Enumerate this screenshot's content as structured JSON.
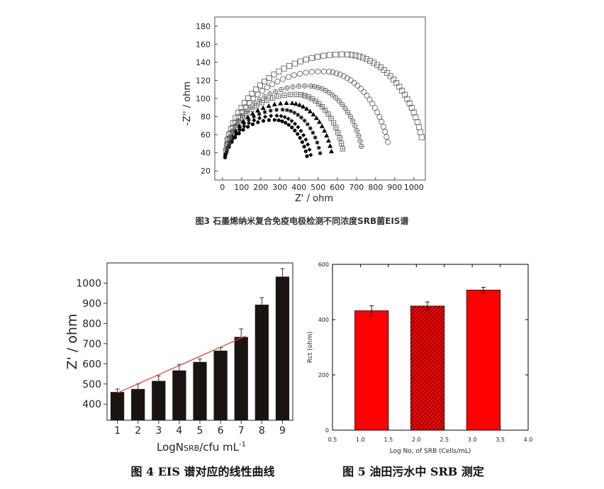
{
  "chart_data": [
    {
      "id": "fig3",
      "type": "scatter",
      "title": "",
      "caption": "图3 石墨烯纳米复合免疫电极检测不同浓度SRB菌EIS谱",
      "xlabel": "Z' / ohm",
      "ylabel": "-Z'' / ohm",
      "xlim": [
        -40,
        1060
      ],
      "ylim": [
        10,
        190
      ],
      "xticks": [
        0,
        100,
        200,
        300,
        400,
        500,
        600,
        700,
        800,
        900,
        1000
      ],
      "yticks": [
        20,
        40,
        60,
        80,
        100,
        120,
        140,
        160,
        180
      ],
      "series": [
        {
          "name": "s1",
          "marker": "filled-circle",
          "xstart": 5,
          "xend": 450,
          "peak": 80
        },
        {
          "name": "s2",
          "marker": "filled-diamond",
          "xstart": 5,
          "xend": 470,
          "peak": 85
        },
        {
          "name": "s3",
          "marker": "star",
          "xstart": 5,
          "xend": 520,
          "peak": 92
        },
        {
          "name": "s4",
          "marker": "filled-triangle",
          "xstart": 5,
          "xend": 580,
          "peak": 100
        },
        {
          "name": "s5",
          "marker": "open-square-cross",
          "xstart": 5,
          "xend": 640,
          "peak": 110
        },
        {
          "name": "s6",
          "marker": "open-circle-cross",
          "xstart": 5,
          "xend": 740,
          "peak": 120
        },
        {
          "name": "s7",
          "marker": "open-circle",
          "xstart": 5,
          "xend": 880,
          "peak": 137
        },
        {
          "name": "s8",
          "marker": "open-square",
          "xstart": 5,
          "xend": 1060,
          "peak": 157
        }
      ]
    },
    {
      "id": "fig4",
      "type": "bar",
      "caption": "图 4 EIS 谱对应的线性曲线",
      "xlabel_main": "LogN",
      "xlabel_sub": "SRB",
      "xlabel_tail": "/cfu mL",
      "xlabel_sup": "-1",
      "ylabel": "Z' / ohm",
      "categories": [
        "1",
        "2",
        "3",
        "4",
        "5",
        "6",
        "7",
        "8",
        "9"
      ],
      "values": [
        460,
        475,
        515,
        567,
        609,
        665,
        733,
        893,
        1032
      ],
      "errors": [
        15,
        25,
        25,
        30,
        15,
        15,
        40,
        35,
        40
      ],
      "ylim": [
        320,
        1100
      ],
      "yticks": [
        400,
        500,
        600,
        700,
        800,
        900,
        1000
      ],
      "fit_line": {
        "x_from": 1.0,
        "y_from": 455,
        "x_to": 7.2,
        "y_to": 737,
        "color": "#e04040"
      }
    },
    {
      "id": "fig5",
      "type": "bar",
      "caption": "图 5 油田污水中 SRB 测定",
      "xlabel": "Log No, of SRB (Cells/mL)",
      "ylabel": "Rct (ohm)",
      "xlim": [
        0.5,
        4.0
      ],
      "ylim": [
        0,
        600
      ],
      "xticks": [
        0.5,
        1.0,
        1.5,
        2.0,
        2.5,
        3.0,
        3.5,
        4.0
      ],
      "xtick_labels": [
        "0.5",
        "1.0",
        "1.5",
        "2.0",
        "2.5",
        "3.0",
        "3.5",
        "4.0"
      ],
      "yticks": [
        0,
        200,
        400,
        600
      ],
      "bars": [
        {
          "x": 1.2,
          "width": 0.6,
          "value": 432,
          "error": 18,
          "pattern": "solid"
        },
        {
          "x": 2.2,
          "width": 0.6,
          "value": 449,
          "error": 15,
          "pattern": "hatch"
        },
        {
          "x": 3.2,
          "width": 0.6,
          "value": 507,
          "error": 10,
          "pattern": "solid"
        }
      ],
      "bar_color": "#ff0000"
    }
  ]
}
